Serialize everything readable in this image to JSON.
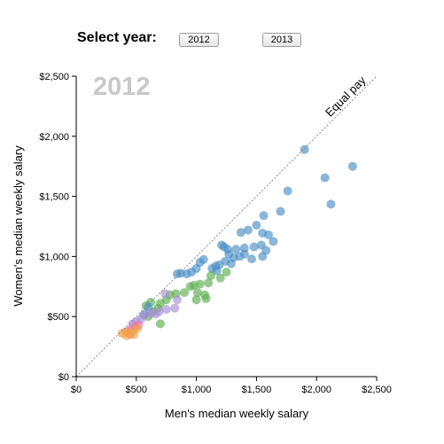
{
  "controls": {
    "label": "Select year:",
    "buttons": [
      "2012",
      "2013"
    ]
  },
  "colors": {
    "blue": "#4a8fc4",
    "green": "#5cae4e",
    "purple": "#a48fd6",
    "orange": "#f2a24a",
    "pink": "#e07aa8",
    "watermark": "#c8c8c8"
  },
  "chart_data": {
    "type": "scatter",
    "year_label": "2012",
    "xlabel": "Men's median weekly salary",
    "ylabel": "Women's median weekly salary",
    "xlim": [
      0,
      2500
    ],
    "ylim": [
      0,
      2500
    ],
    "x_ticks": [
      "$0",
      "$500",
      "$1,000",
      "$1,500",
      "$2,000",
      "$2,500"
    ],
    "y_ticks": [
      "$0",
      "$500",
      "$1,000",
      "$1,500",
      "$2,000",
      "$2,500"
    ],
    "reference_line": {
      "label": "Equal pay",
      "style": "dotted"
    },
    "points": [
      {
        "x": 1900,
        "y": 1890,
        "c": "blue"
      },
      {
        "x": 2300,
        "y": 1750,
        "c": "blue"
      },
      {
        "x": 2070,
        "y": 1655,
        "c": "blue"
      },
      {
        "x": 2120,
        "y": 1435,
        "c": "blue"
      },
      {
        "x": 1760,
        "y": 1545,
        "c": "blue"
      },
      {
        "x": 1700,
        "y": 1375,
        "c": "blue"
      },
      {
        "x": 1560,
        "y": 1340,
        "c": "blue"
      },
      {
        "x": 1500,
        "y": 1260,
        "c": "blue"
      },
      {
        "x": 1430,
        "y": 1220,
        "c": "blue"
      },
      {
        "x": 1370,
        "y": 1200,
        "c": "blue"
      },
      {
        "x": 1550,
        "y": 1195,
        "c": "blue"
      },
      {
        "x": 1600,
        "y": 1180,
        "c": "blue"
      },
      {
        "x": 1640,
        "y": 1125,
        "c": "blue"
      },
      {
        "x": 1540,
        "y": 1095,
        "c": "blue"
      },
      {
        "x": 1480,
        "y": 1080,
        "c": "blue"
      },
      {
        "x": 1400,
        "y": 1070,
        "c": "blue"
      },
      {
        "x": 1330,
        "y": 1060,
        "c": "blue"
      },
      {
        "x": 1260,
        "y": 1060,
        "c": "blue"
      },
      {
        "x": 1210,
        "y": 1095,
        "c": "blue"
      },
      {
        "x": 1230,
        "y": 1080,
        "c": "blue"
      },
      {
        "x": 1580,
        "y": 1050,
        "c": "blue"
      },
      {
        "x": 1400,
        "y": 1020,
        "c": "blue"
      },
      {
        "x": 1360,
        "y": 1000,
        "c": "blue"
      },
      {
        "x": 1310,
        "y": 990,
        "c": "blue"
      },
      {
        "x": 1270,
        "y": 1020,
        "c": "blue"
      },
      {
        "x": 1550,
        "y": 1000,
        "c": "blue"
      },
      {
        "x": 1460,
        "y": 980,
        "c": "blue"
      },
      {
        "x": 1290,
        "y": 940,
        "c": "blue"
      },
      {
        "x": 1240,
        "y": 960,
        "c": "blue"
      },
      {
        "x": 1190,
        "y": 930,
        "c": "blue"
      },
      {
        "x": 1160,
        "y": 920,
        "c": "blue"
      },
      {
        "x": 1130,
        "y": 900,
        "c": "blue"
      },
      {
        "x": 1060,
        "y": 975,
        "c": "blue"
      },
      {
        "x": 1030,
        "y": 950,
        "c": "blue"
      },
      {
        "x": 1000,
        "y": 900,
        "c": "blue"
      },
      {
        "x": 960,
        "y": 870,
        "c": "blue"
      },
      {
        "x": 920,
        "y": 855,
        "c": "blue"
      },
      {
        "x": 870,
        "y": 860,
        "c": "blue"
      },
      {
        "x": 840,
        "y": 855,
        "c": "blue"
      },
      {
        "x": 1170,
        "y": 880,
        "c": "blue"
      },
      {
        "x": 1250,
        "y": 870,
        "c": "green"
      },
      {
        "x": 1120,
        "y": 840,
        "c": "green"
      },
      {
        "x": 1200,
        "y": 820,
        "c": "green"
      },
      {
        "x": 1100,
        "y": 780,
        "c": "green"
      },
      {
        "x": 1030,
        "y": 770,
        "c": "green"
      },
      {
        "x": 980,
        "y": 760,
        "c": "green"
      },
      {
        "x": 950,
        "y": 750,
        "c": "green"
      },
      {
        "x": 1010,
        "y": 700,
        "c": "green"
      },
      {
        "x": 1070,
        "y": 680,
        "c": "green"
      },
      {
        "x": 1080,
        "y": 650,
        "c": "green"
      },
      {
        "x": 1000,
        "y": 640,
        "c": "green"
      },
      {
        "x": 900,
        "y": 700,
        "c": "green"
      },
      {
        "x": 830,
        "y": 690,
        "c": "green"
      },
      {
        "x": 780,
        "y": 680,
        "c": "green"
      },
      {
        "x": 750,
        "y": 640,
        "c": "green"
      },
      {
        "x": 700,
        "y": 610,
        "c": "green"
      },
      {
        "x": 620,
        "y": 620,
        "c": "green"
      },
      {
        "x": 580,
        "y": 590,
        "c": "green"
      },
      {
        "x": 680,
        "y": 570,
        "c": "green"
      },
      {
        "x": 640,
        "y": 540,
        "c": "green"
      },
      {
        "x": 700,
        "y": 440,
        "c": "green"
      },
      {
        "x": 600,
        "y": 500,
        "c": "green"
      },
      {
        "x": 570,
        "y": 520,
        "c": "blue"
      },
      {
        "x": 600,
        "y": 580,
        "c": "blue"
      },
      {
        "x": 740,
        "y": 690,
        "c": "purple"
      },
      {
        "x": 840,
        "y": 640,
        "c": "purple"
      },
      {
        "x": 820,
        "y": 570,
        "c": "purple"
      },
      {
        "x": 750,
        "y": 560,
        "c": "purple"
      },
      {
        "x": 690,
        "y": 540,
        "c": "purple"
      },
      {
        "x": 660,
        "y": 520,
        "c": "purple"
      },
      {
        "x": 620,
        "y": 530,
        "c": "purple"
      },
      {
        "x": 560,
        "y": 510,
        "c": "purple"
      },
      {
        "x": 540,
        "y": 480,
        "c": "purple"
      },
      {
        "x": 500,
        "y": 460,
        "c": "purple"
      },
      {
        "x": 470,
        "y": 440,
        "c": "purple"
      },
      {
        "x": 520,
        "y": 430,
        "c": "pink"
      },
      {
        "x": 490,
        "y": 420,
        "c": "pink"
      },
      {
        "x": 460,
        "y": 400,
        "c": "pink"
      },
      {
        "x": 430,
        "y": 380,
        "c": "pink"
      },
      {
        "x": 450,
        "y": 350,
        "c": "pink"
      },
      {
        "x": 410,
        "y": 370,
        "c": "orange"
      },
      {
        "x": 380,
        "y": 360,
        "c": "orange"
      },
      {
        "x": 440,
        "y": 360,
        "c": "orange"
      },
      {
        "x": 470,
        "y": 380,
        "c": "orange"
      },
      {
        "x": 510,
        "y": 400,
        "c": "orange"
      },
      {
        "x": 420,
        "y": 340,
        "c": "orange"
      },
      {
        "x": 480,
        "y": 350,
        "c": "orange"
      }
    ]
  }
}
